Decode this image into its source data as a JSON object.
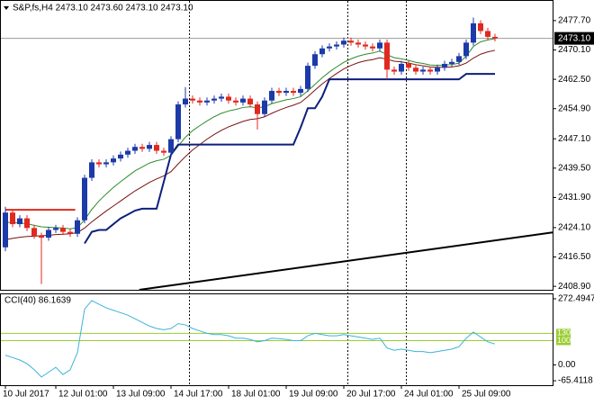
{
  "chart_data": [
    {
      "type": "candlestick",
      "title": "S&P,fs,H4  2473.10 2473.60 2473.10 2473.10",
      "categories": [
        "10 Jul 2017",
        null,
        null,
        null,
        null,
        null,
        null,
        "12 Jul 01:00",
        null,
        null,
        null,
        null,
        null,
        null,
        null,
        "13 Jul 09:00",
        null,
        null,
        null,
        null,
        null,
        null,
        null,
        "14 Jul 17:00",
        null,
        null,
        null,
        null,
        null,
        null,
        null,
        "18 Jul 01:00",
        null,
        null,
        null,
        null,
        null,
        null,
        null,
        "19 Jul 09:00",
        null,
        null,
        null,
        null,
        null,
        null,
        null,
        "20 Jul 17:00",
        null,
        null,
        null,
        null,
        null,
        null,
        null,
        "24 Jul 01:00",
        null,
        null,
        null,
        null,
        null,
        null,
        null,
        "25 Jul 09:00",
        null,
        null,
        null,
        null,
        null
      ],
      "open": [
        2419,
        2428,
        2425,
        2426.5,
        2424,
        2422,
        2421.5,
        2423.5,
        2424,
        2423,
        2422.5,
        2426,
        2437,
        2441,
        2440.5,
        2441,
        2442,
        2443,
        2444,
        2445,
        2444.5,
        2445.5,
        2444,
        2443.5,
        2447,
        2456,
        2457.5,
        2457,
        2456.5,
        2457,
        2457.5,
        2458,
        2457,
        2456.5,
        2457.5,
        2456,
        2453.5,
        2457,
        2459.5,
        2459,
        2459.5,
        2459,
        2460,
        2466,
        2469,
        2470.5,
        2471,
        2471.5,
        2472.5,
        2472,
        2471.5,
        2471,
        2470.5,
        2472,
        2465,
        2464.5,
        2466.5,
        2465.5,
        2464.5,
        2465,
        2464.5,
        2465.5,
        2466.5,
        2467,
        2468.5,
        2472,
        2477,
        2475,
        2473.5
      ],
      "high": [
        2429.5,
        2428.8,
        2427.3,
        2427.3,
        2424.8,
        2422.8,
        2424.3,
        2424.8,
        2424.8,
        2423.8,
        2426.8,
        2437.8,
        2441.8,
        2441.8,
        2441.8,
        2442.8,
        2443.8,
        2444.8,
        2445.8,
        2445.8,
        2446.3,
        2446.3,
        2444.8,
        2447.8,
        2456.8,
        2460.5,
        2458.3,
        2457.8,
        2457.8,
        2458.3,
        2458.8,
        2458.8,
        2457.8,
        2458.3,
        2458.3,
        2456.8,
        2457.8,
        2460.3,
        2460.3,
        2460.3,
        2460.3,
        2460.8,
        2466.8,
        2469.8,
        2471.3,
        2471.8,
        2472.3,
        2473.3,
        2473.3,
        2472.8,
        2472.3,
        2471.8,
        2472.8,
        2472.8,
        2465.8,
        2467.3,
        2467.3,
        2466.3,
        2465.8,
        2465.8,
        2466.3,
        2467.3,
        2467.8,
        2469.3,
        2472.8,
        2478.5,
        2477.8,
        2475.8,
        2474.3
      ],
      "low": [
        2418,
        2424.2,
        2424.2,
        2423.2,
        2421.2,
        2409.5,
        2420.7,
        2422.7,
        2422.2,
        2421.7,
        2421.7,
        2425.2,
        2436.2,
        2439.7,
        2439.7,
        2440.2,
        2441.2,
        2442.2,
        2443.2,
        2443.7,
        2443.7,
        2443.2,
        2442.7,
        2442.7,
        2446.2,
        2455.2,
        2456.2,
        2455.7,
        2455.7,
        2456.2,
        2456.7,
        2456.2,
        2455.7,
        2455.7,
        2455.2,
        2449.5,
        2452.7,
        2456.2,
        2458.2,
        2458.2,
        2458.2,
        2458.2,
        2459.2,
        2465.2,
        2468.2,
        2469.7,
        2470.2,
        2470.7,
        2471.2,
        2470.7,
        2470.2,
        2469.7,
        2469.7,
        2462.5,
        2463.7,
        2463.7,
        2464.7,
        2463.7,
        2463.7,
        2463.7,
        2463.7,
        2464.7,
        2465.7,
        2466.2,
        2467.7,
        2471.2,
        2474.2,
        2472.7,
        2472.3
      ],
      "close": [
        2428,
        2425,
        2426.5,
        2424,
        2422,
        2421.5,
        2423.5,
        2424,
        2423,
        2422.5,
        2426,
        2437,
        2441,
        2440.5,
        2441,
        2442,
        2443,
        2444,
        2445,
        2444.5,
        2445.5,
        2444,
        2443.5,
        2447,
        2456,
        2457.5,
        2457,
        2456.5,
        2457,
        2457.5,
        2458,
        2457,
        2456.5,
        2457.5,
        2456,
        2453.5,
        2457,
        2459.5,
        2459,
        2459.5,
        2459,
        2460,
        2466,
        2469,
        2470.5,
        2471,
        2471.5,
        2472.5,
        2472,
        2471.5,
        2471,
        2470.5,
        2472,
        2465,
        2464.5,
        2466.5,
        2465.5,
        2464.5,
        2465,
        2464.5,
        2465.5,
        2466.5,
        2467,
        2468.5,
        2472,
        2477,
        2475,
        2473.5,
        2473.1
      ],
      "up_color": "#1c3aa8",
      "down_color": "#e0291f",
      "overlays": [
        {
          "color": "#2e8b2e",
          "values": [
            2425.5,
            2425.4,
            2425.3,
            2425.1,
            2424.7,
            2424.3,
            2424.2,
            2424.1,
            2424,
            2423.8,
            2424.1,
            2426.1,
            2428.8,
            2431,
            2432.8,
            2434.5,
            2436,
            2437.4,
            2438.8,
            2439.8,
            2440.8,
            2441.4,
            2441.8,
            2442.8,
            2445.2,
            2447.5,
            2449.2,
            2450.5,
            2451.7,
            2452.8,
            2453.7,
            2454.3,
            2454.7,
            2455.2,
            2455.4,
            2455.1,
            2455.4,
            2456.2,
            2456.7,
            2457.2,
            2457.5,
            2458,
            2459.5,
            2461.2,
            2462.9,
            2464.4,
            2465.7,
            2466.9,
            2467.8,
            2468.5,
            2469,
            2469.3,
            2469.8,
            2468.9,
            2468.1,
            2467.8,
            2467.4,
            2466.9,
            2466.6,
            2466.2,
            2466.1,
            2466.2,
            2466.3,
            2466.7,
            2468.5,
            2471,
            2472.2,
            2472.7,
            2473
          ]
        },
        {
          "color": "#7a1212",
          "values": [
            2421,
            2421.3,
            2421.6,
            2421.8,
            2421.9,
            2422,
            2422.1,
            2422.3,
            2422.4,
            2422.5,
            2422.8,
            2424,
            2425.6,
            2427,
            2428.4,
            2429.7,
            2431,
            2432.3,
            2433.6,
            2434.7,
            2435.8,
            2436.7,
            2437.5,
            2438.6,
            2440.6,
            2442.5,
            2444.2,
            2445.6,
            2447,
            2448.2,
            2449.3,
            2450.2,
            2450.9,
            2451.6,
            2452.1,
            2452.3,
            2452.8,
            2453.7,
            2454.5,
            2455.2,
            2455.8,
            2456.5,
            2458,
            2459.7,
            2461.3,
            2462.7,
            2464,
            2465.2,
            2466.1,
            2466.8,
            2467.3,
            2467.6,
            2468.1,
            2467.7,
            2467.2,
            2467,
            2466.7,
            2466.3,
            2466,
            2465.7,
            2465.6,
            2465.6,
            2465.7,
            2466,
            2466.7,
            2468,
            2469,
            2469.6,
            2470
          ]
        },
        {
          "color": "#0c1f7c",
          "values": [
            null,
            null,
            null,
            null,
            null,
            null,
            null,
            null,
            null,
            null,
            null,
            2420,
            2423,
            2423.5,
            2423.5,
            2425,
            2426.5,
            2427.5,
            2428.5,
            2429,
            2429,
            2429,
            2436,
            2443,
            2445.6,
            2445.6,
            2445.6,
            2445.6,
            2445.6,
            2445.6,
            2445.6,
            2445.6,
            2445.6,
            2445.6,
            2445.6,
            2445.6,
            2445.6,
            2445.6,
            2445.6,
            2445.6,
            2445.6,
            2450,
            2455,
            2455,
            2458,
            2462.5,
            2462.5,
            2462.5,
            2462.5,
            2462.5,
            2462.5,
            2462.5,
            2462.5,
            2462.5,
            2462.5,
            2462.5,
            2462.5,
            2462.5,
            2462.5,
            2462.5,
            2462.5,
            2462.5,
            2462.5,
            2462.5,
            2463.9,
            2463.9,
            2463.9,
            2463.9,
            2463.9
          ]
        }
      ],
      "trendline": {
        "color": "#000000",
        "x": [
          18.6,
          76
        ],
        "y": [
          2408,
          2422.85
        ]
      },
      "level_line": {
        "color": "#e0291f",
        "x": [
          0,
          9.7
        ],
        "y": [
          2428.7,
          2428.7
        ]
      },
      "current_price": {
        "value": 2473.1,
        "label": "2473.10"
      },
      "ylim": [
        2408.0,
        2482.8
      ],
      "yticks": [
        {
          "value": 2477.7,
          "label": "2477.70"
        },
        {
          "value": 2470.1,
          "label": "2470.10"
        },
        {
          "value": 2462.5,
          "label": "2462.50"
        },
        {
          "value": 2454.9,
          "label": "2454.90"
        },
        {
          "value": 2447.1,
          "label": "2447.10"
        },
        {
          "value": 2439.5,
          "label": "2439.50"
        },
        {
          "value": 2431.9,
          "label": "2431.90"
        },
        {
          "value": 2424.1,
          "label": "2424.10"
        },
        {
          "value": 2416.5,
          "label": "2416.50"
        },
        {
          "value": 2408.9,
          "label": "2408.90"
        }
      ]
    },
    {
      "type": "line",
      "title": "CCI(40) 86.1639",
      "color": "#3cb4d8",
      "values": [
        40,
        30,
        20,
        5,
        -20,
        -50,
        -30,
        -10,
        -40,
        -20,
        50,
        230,
        265,
        250,
        235,
        225,
        215,
        205,
        190,
        175,
        160,
        150,
        145,
        150,
        170,
        165,
        150,
        140,
        130,
        125,
        125,
        120,
        110,
        110,
        105,
        95,
        100,
        110,
        108,
        105,
        100,
        100,
        120,
        130,
        125,
        120,
        120,
        125,
        120,
        115,
        110,
        105,
        110,
        70,
        60,
        65,
        60,
        55,
        55,
        50,
        55,
        60,
        65,
        75,
        110,
        135,
        115,
        95,
        86.1639
      ],
      "levels": [
        130,
        100
      ],
      "level_color": "#9acd32",
      "ylim": [
        -83.8,
        290.9
      ],
      "yticks": [
        272.4947,
        {
          "value": 0,
          "label": "0.00"
        },
        -65.4118
      ]
    }
  ]
}
